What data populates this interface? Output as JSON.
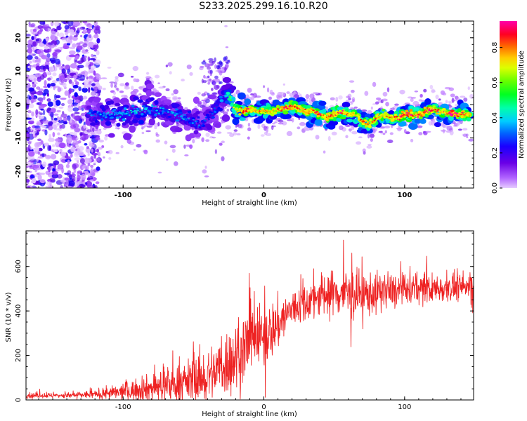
{
  "title": "S233.2025.299.16.10.R20",
  "chart_data": [
    {
      "type": "heatmap",
      "name": "spectrogram",
      "xlabel": "Height of straight line (km)",
      "ylabel": "Frequency (Hz)",
      "xlim": [
        -169,
        149
      ],
      "ylim": [
        -25,
        25
      ],
      "xticks": [
        -100,
        0,
        100
      ],
      "yticks": [
        -20,
        -10,
        0,
        10,
        20
      ],
      "colorbar": {
        "label": "Normalized spectral amplitude",
        "range": [
          0,
          0.95
        ],
        "ticks": [
          "0.0",
          "0.2",
          "0.4",
          "0.6",
          "0.8"
        ],
        "colors": [
          "#e6ccff",
          "#a64dff",
          "#5a00e6",
          "#0000ff",
          "#00aaff",
          "#00ffcc",
          "#00ff00",
          "#aaff00",
          "#ffff00",
          "#ffaa00",
          "#ff0000",
          "#ff00aa"
        ]
      },
      "signal_track": {
        "x": [
          -120,
          -110,
          -100,
          -90,
          -80,
          -70,
          -60,
          -50,
          -45,
          -40,
          -35,
          -30,
          -25,
          -20,
          -15,
          -10,
          -5,
          0,
          5,
          10,
          15,
          20,
          25,
          30,
          35,
          40,
          45,
          50,
          55,
          60,
          65,
          70,
          75,
          80,
          85,
          90,
          95,
          100,
          105,
          110,
          115,
          120,
          125,
          130,
          135,
          140,
          145
        ],
        "freq": [
          -3,
          -3,
          -2.5,
          -2,
          -1,
          -2,
          -3,
          -5,
          -6,
          -4,
          -2,
          2,
          3,
          -2,
          -2,
          -1.5,
          -2,
          -2,
          -2,
          -1.5,
          -1,
          -0.5,
          -1,
          -2,
          -2,
          -3,
          -4,
          -3,
          -2,
          -3,
          -3,
          -5,
          -6,
          -4,
          -3,
          -4,
          -4,
          -3,
          -3,
          -3,
          -2,
          -1.5,
          -2,
          -2.5,
          -3,
          -3,
          -3
        ],
        "amplitude": [
          0.3,
          0.35,
          0.35,
          0.4,
          0.35,
          0.3,
          0.35,
          0.3,
          0.3,
          0.25,
          0.3,
          0.35,
          0.45,
          0.7,
          0.75,
          0.8,
          0.75,
          0.7,
          0.7,
          0.75,
          0.85,
          0.8,
          0.75,
          0.8,
          0.75,
          0.8,
          0.75,
          0.75,
          0.8,
          0.75,
          0.7,
          0.75,
          0.7,
          0.75,
          0.7,
          0.75,
          0.8,
          0.85,
          0.8,
          0.8,
          0.85,
          0.8,
          0.75,
          0.8,
          0.85,
          0.8,
          0.75
        ]
      },
      "noise_region_end_km": -125
    },
    {
      "type": "line",
      "name": "snr",
      "xlabel": "Height of straight line (km)",
      "ylabel": "SNR (10 * v/v)",
      "xlim": [
        -169,
        149
      ],
      "ylim": [
        0,
        760
      ],
      "xticks": [
        -100,
        0,
        100
      ],
      "yticks": [
        0,
        200,
        400,
        600
      ],
      "color": "#ee2222",
      "trend": {
        "x": [
          -169,
          -140,
          -120,
          -100,
          -80,
          -60,
          -40,
          -20,
          -10,
          0,
          10,
          20,
          30,
          40,
          50,
          60,
          70,
          80,
          90,
          100,
          110,
          120,
          130,
          140,
          149
        ],
        "mean": [
          20,
          20,
          25,
          35,
          55,
          75,
          110,
          190,
          260,
          280,
          340,
          410,
          440,
          470,
          480,
          480,
          470,
          480,
          490,
          490,
          500,
          500,
          505,
          505,
          510
        ],
        "spread": [
          8,
          8,
          12,
          25,
          40,
          55,
          80,
          110,
          120,
          90,
          80,
          60,
          55,
          70,
          70,
          80,
          70,
          60,
          55,
          50,
          45,
          45,
          40,
          40,
          40
        ]
      }
    }
  ]
}
